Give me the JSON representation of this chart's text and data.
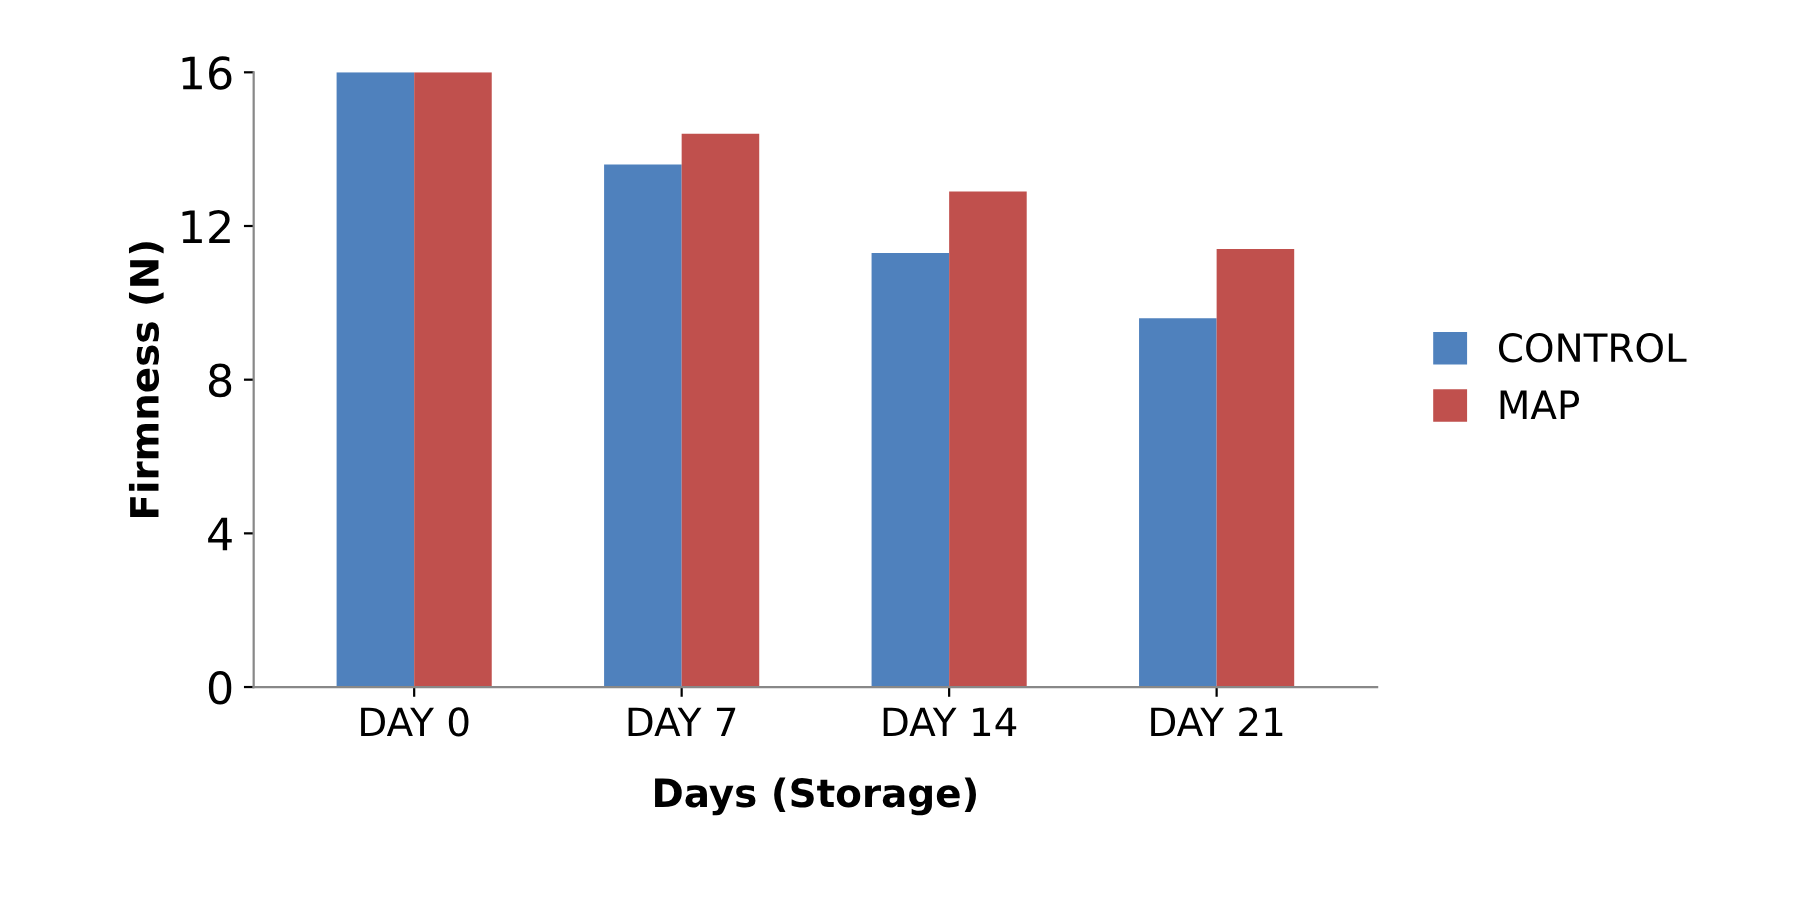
{
  "chart_data": {
    "type": "bar",
    "xlabel": "Days (Storage)",
    "ylabel": "Firmness (N)",
    "categories": [
      "DAY 0",
      "DAY 7",
      "DAY 14",
      "DAY 21"
    ],
    "series": [
      {
        "name": "CONTROL",
        "color": "#4f81bd",
        "values": [
          16,
          13.6,
          11.3,
          9.6
        ]
      },
      {
        "name": "MAP",
        "color": "#c0504d",
        "values": [
          16,
          14.4,
          12.9,
          11.4
        ]
      }
    ],
    "ylim": [
      0,
      16
    ],
    "yticks": [
      0,
      4,
      8,
      12,
      16
    ],
    "grid": false,
    "legend": "right"
  }
}
